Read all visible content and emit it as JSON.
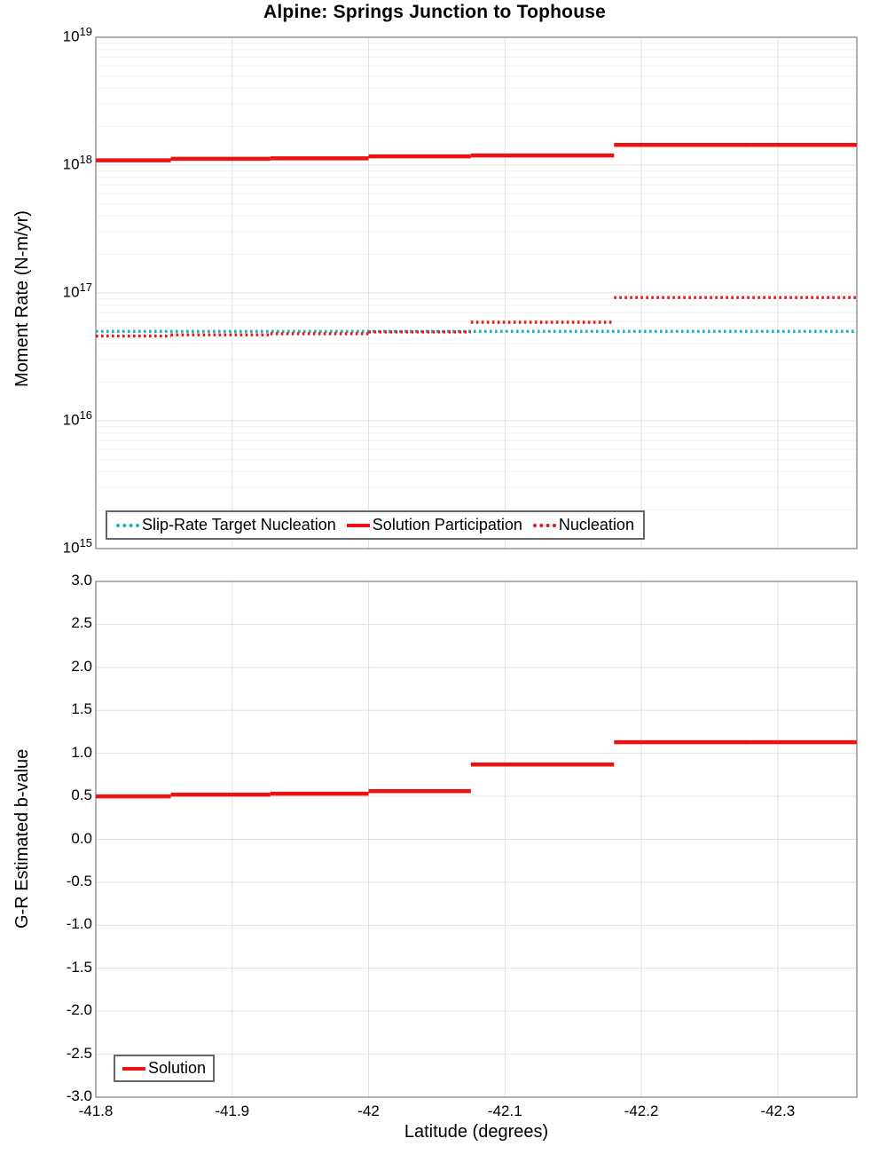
{
  "figure": {
    "title": "Alpine: Springs Junction to Tophouse",
    "background": "#ffffff"
  },
  "colors": {
    "red": "#ee1111",
    "teal": "#1ab3b8",
    "grid_major": "#e2e2e2",
    "grid_minor": "#f2f2f2",
    "frame": "#999999",
    "legend_border": "#666666",
    "text": "#000000"
  },
  "chart_data": [
    {
      "type": "line",
      "subtype": "step",
      "title": "Alpine: Springs Junction to Tophouse",
      "ylabel": "Moment Rate (N-m/yr)",
      "yscale": "log",
      "ylim": [
        1000000000000000.0,
        1e+19
      ],
      "xlim": [
        -41.8,
        -42.358
      ],
      "x_ticks": [
        -41.8,
        -41.9,
        -42.0,
        -42.1,
        -42.2,
        -42.3
      ],
      "y_tick_exponents": [
        19,
        18,
        17,
        16,
        15
      ],
      "grid": true,
      "legend_position": "inside-bottom-left",
      "series": [
        {
          "name": "Slip-Rate Target Nucleation",
          "color": "#1ab3b8",
          "style": "dotted",
          "z": 1,
          "steps": [
            [
              -41.8,
              -42.358,
              5e+16
            ]
          ]
        },
        {
          "name": "Solution Participation",
          "color": "#ee1111",
          "style": "solid",
          "z": 3,
          "steps": [
            [
              -41.8,
              -41.855,
              1.09e+18
            ],
            [
              -41.855,
              -41.928,
              1.12e+18
            ],
            [
              -41.928,
              -42.0,
              1.13e+18
            ],
            [
              -42.0,
              -42.075,
              1.17e+18
            ],
            [
              -42.075,
              -42.18,
              1.19e+18
            ],
            [
              -42.18,
              -42.28,
              1.44e+18
            ],
            [
              -42.28,
              -42.358,
              1.44e+18
            ]
          ]
        },
        {
          "name": "Nucleation",
          "color": "#ee1111",
          "style": "dotted",
          "z": 2,
          "steps": [
            [
              -41.8,
              -41.855,
              4.6e+16
            ],
            [
              -41.855,
              -41.928,
              4.7e+16
            ],
            [
              -41.928,
              -42.0,
              4.8e+16
            ],
            [
              -42.0,
              -42.075,
              4.95e+16
            ],
            [
              -42.075,
              -42.18,
              5.9e+16
            ],
            [
              -42.18,
              -42.358,
              9.2e+16
            ]
          ]
        }
      ]
    },
    {
      "type": "line",
      "subtype": "step",
      "xlabel": "Latitude (degrees)",
      "ylabel": "G-R Estimated b-value",
      "yscale": "linear",
      "ylim": [
        -3.0,
        3.0
      ],
      "xlim": [
        -41.8,
        -42.358
      ],
      "x_ticks": [
        -41.8,
        -41.9,
        -42.0,
        -42.1,
        -42.2,
        -42.3
      ],
      "x_tick_labels": [
        "-41.8",
        "-41.9",
        "-42",
        "-42.1",
        "-42.2",
        "-42.3"
      ],
      "y_ticks": [
        3.0,
        2.5,
        2.0,
        1.5,
        1.0,
        0.5,
        0.0,
        -0.5,
        -1.0,
        -1.5,
        -2.0,
        -2.5,
        -3.0
      ],
      "grid": true,
      "legend_position": "inside-bottom-left",
      "series": [
        {
          "name": "Solution",
          "color": "#ee1111",
          "style": "solid",
          "z": 1,
          "steps": [
            [
              -41.8,
              -41.855,
              0.5
            ],
            [
              -41.855,
              -41.928,
              0.52
            ],
            [
              -41.928,
              -42.0,
              0.53
            ],
            [
              -42.0,
              -42.075,
              0.56
            ],
            [
              -42.075,
              -42.18,
              0.87
            ],
            [
              -42.18,
              -42.28,
              1.13
            ],
            [
              -42.28,
              -42.358,
              1.13
            ]
          ]
        }
      ]
    }
  ]
}
